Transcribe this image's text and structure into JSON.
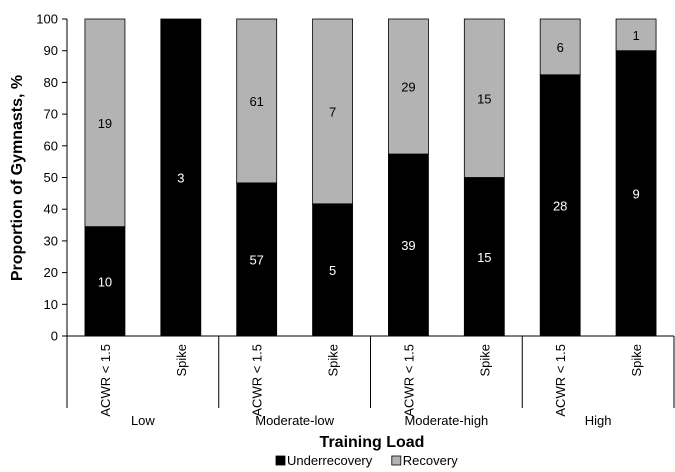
{
  "chart_data": {
    "type": "bar",
    "stacked": true,
    "percent_stacked": true,
    "xlabel": "Training Load",
    "ylabel": "Proportion of Gymnasts, %",
    "ylim": [
      0,
      100
    ],
    "y_ticks": [
      0,
      10,
      20,
      30,
      40,
      50,
      60,
      70,
      80,
      90,
      100
    ],
    "grid": false,
    "legend_position": "bottom",
    "groups": [
      "Low",
      "Moderate-low",
      "Moderate-high",
      "High"
    ],
    "categories": [
      "ACWR < 1.5",
      "Spike",
      "ACWR < 1.5",
      "Spike",
      "ACWR < 1.5",
      "Spike",
      "ACWR < 1.5",
      "Spike"
    ],
    "category_group": [
      0,
      0,
      1,
      1,
      2,
      2,
      3,
      3
    ],
    "series": [
      {
        "name": "Underrecovery",
        "color": "#000000",
        "label_color": "#ffffff",
        "values": [
          34.5,
          100,
          48.3,
          41.7,
          57.4,
          50.0,
          82.4,
          90.0
        ],
        "counts": [
          "10",
          "3",
          "57",
          "5",
          "39",
          "15",
          "28",
          "9"
        ]
      },
      {
        "name": "Recovery",
        "color": "#b3b3b3",
        "label_color": "#000000",
        "values": [
          65.5,
          0,
          51.7,
          58.3,
          42.6,
          50.0,
          17.6,
          10.0
        ],
        "counts": [
          "19",
          "",
          "61",
          "7",
          "29",
          "15",
          "6",
          "1"
        ]
      }
    ]
  }
}
